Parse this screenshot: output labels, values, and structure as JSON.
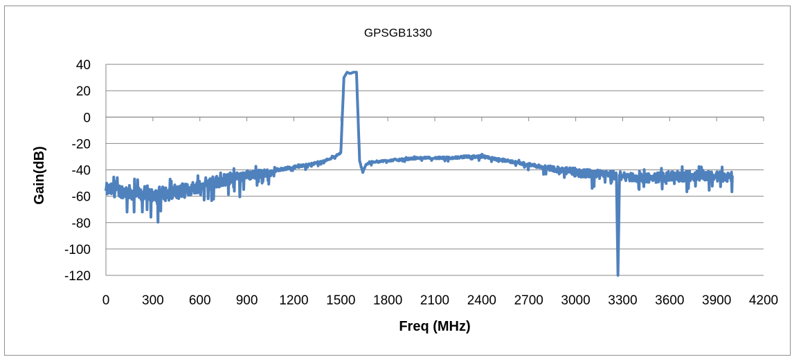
{
  "chart_data": {
    "type": "line",
    "title": "GPSGB1330",
    "xlabel": "Freq (MHz)",
    "ylabel": "Gain(dB)",
    "xlim": [
      0,
      4200
    ],
    "ylim": [
      -120,
      40
    ],
    "x_ticks": [
      0,
      300,
      600,
      900,
      1200,
      1500,
      1800,
      2100,
      2400,
      2700,
      3000,
      3300,
      3600,
      3900,
      4200
    ],
    "y_ticks": [
      40,
      20,
      0,
      -20,
      -40,
      -60,
      -80,
      -100,
      -120
    ],
    "grid": true,
    "legend": "none",
    "series_color": "#4f81bd",
    "series": [
      {
        "x": [
          0,
          100,
          200,
          300,
          400,
          500,
          600,
          700,
          800,
          900,
          1000,
          1100,
          1200,
          1300,
          1400,
          1460,
          1500,
          1520,
          1540,
          1560,
          1580,
          1600,
          1620,
          1640,
          1660,
          1680,
          1700,
          1800,
          1900,
          2000,
          2100,
          2200,
          2300,
          2400,
          2500,
          2600,
          2700,
          2800,
          2900,
          3000,
          3100,
          3200,
          3260,
          3270,
          3280,
          3300,
          3400,
          3500,
          3600,
          3700,
          3800,
          3900,
          4000
        ],
        "y": [
          -55,
          -56,
          -58,
          -58,
          -58,
          -56,
          -52,
          -49,
          -47,
          -44,
          -43,
          -40,
          -38,
          -36,
          -33,
          -30,
          -27,
          30,
          34,
          33,
          34,
          34,
          -33,
          -42,
          -36,
          -35,
          -34,
          -33,
          -32,
          -31,
          -31,
          -31,
          -30,
          -30,
          -32,
          -34,
          -36,
          -38,
          -40,
          -42,
          -43,
          -44,
          -44,
          -120,
          -44,
          -45,
          -46,
          -46,
          -45,
          -45,
          -44,
          -45,
          -45
        ]
      }
    ],
    "noise_band": {
      "x": [
        0,
        200,
        400,
        600,
        800,
        1000,
        1100,
        1500,
        1700,
        2700,
        2800,
        3000,
        3300,
        3600,
        3800,
        4000
      ],
      "amplitude_db": [
        9,
        10,
        10,
        9,
        8,
        6,
        2,
        1,
        1,
        2,
        3,
        6,
        6,
        7,
        7,
        7
      ]
    }
  }
}
